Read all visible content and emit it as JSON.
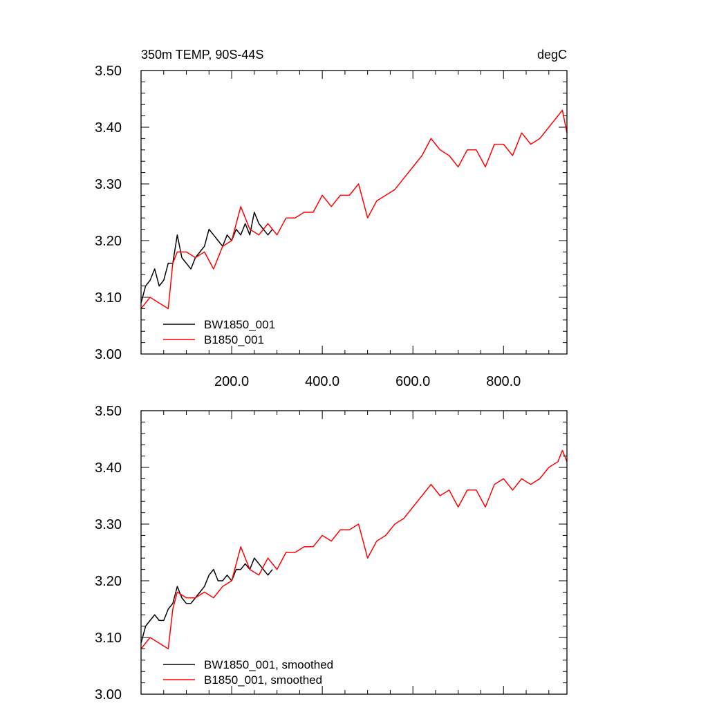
{
  "colors": {
    "series_black": "#000000",
    "series_red": "#ff0000",
    "axes": "#000000",
    "background": "#ffffff"
  },
  "chart_data": [
    {
      "type": "line",
      "title": "350m TEMP, 90S-44S",
      "units": "degC",
      "xlim": [
        0,
        940
      ],
      "ylim": [
        3.0,
        3.5
      ],
      "yticks": [
        3.0,
        3.1,
        3.2,
        3.3,
        3.4,
        3.5
      ],
      "ytick_labels": [
        "3.00",
        "3.10",
        "3.20",
        "3.30",
        "3.40",
        "3.50"
      ],
      "xticks": [
        200,
        400,
        600,
        800
      ],
      "xtick_labels": [
        "200.0",
        "400.0",
        "600.0",
        "800.0"
      ],
      "legend_position": "bottom-left",
      "series": [
        {
          "name": "BW1850_001",
          "color": "#000000",
          "x": [
            0,
            10,
            20,
            30,
            40,
            50,
            60,
            70,
            80,
            90,
            100,
            110,
            120,
            130,
            140,
            150,
            160,
            170,
            180,
            190,
            200,
            210,
            220,
            230,
            240,
            250,
            260,
            270,
            280,
            290
          ],
          "y": [
            3.09,
            3.12,
            3.13,
            3.15,
            3.12,
            3.13,
            3.16,
            3.16,
            3.21,
            3.17,
            3.16,
            3.15,
            3.17,
            3.18,
            3.19,
            3.22,
            3.21,
            3.2,
            3.19,
            3.21,
            3.2,
            3.22,
            3.21,
            3.23,
            3.21,
            3.25,
            3.23,
            3.22,
            3.21,
            3.22
          ]
        },
        {
          "name": "B1850_001",
          "color": "#ff0000",
          "x": [
            0,
            20,
            40,
            60,
            70,
            80,
            100,
            120,
            140,
            160,
            180,
            200,
            220,
            240,
            260,
            280,
            300,
            320,
            340,
            360,
            380,
            400,
            420,
            440,
            460,
            480,
            500,
            520,
            540,
            560,
            580,
            600,
            620,
            640,
            660,
            680,
            700,
            720,
            740,
            760,
            780,
            800,
            820,
            840,
            860,
            880,
            900,
            920,
            930,
            940
          ],
          "y": [
            3.08,
            3.1,
            3.09,
            3.08,
            3.16,
            3.18,
            3.18,
            3.17,
            3.18,
            3.15,
            3.19,
            3.2,
            3.26,
            3.22,
            3.21,
            3.23,
            3.21,
            3.24,
            3.24,
            3.25,
            3.25,
            3.28,
            3.26,
            3.28,
            3.28,
            3.3,
            3.24,
            3.27,
            3.28,
            3.29,
            3.31,
            3.33,
            3.35,
            3.38,
            3.36,
            3.35,
            3.33,
            3.36,
            3.36,
            3.33,
            3.37,
            3.37,
            3.35,
            3.39,
            3.37,
            3.38,
            3.4,
            3.42,
            3.43,
            3.39
          ]
        }
      ]
    },
    {
      "type": "line",
      "title": "",
      "xlim": [
        0,
        940
      ],
      "ylim": [
        3.0,
        3.5
      ],
      "yticks": [
        3.0,
        3.1,
        3.2,
        3.3,
        3.4,
        3.5
      ],
      "ytick_labels": [
        "3.00",
        "3.10",
        "3.20",
        "3.30",
        "3.40",
        "3.50"
      ],
      "xticks": [
        200,
        400,
        600,
        800
      ],
      "legend_position": "bottom-left",
      "series": [
        {
          "name": "BW1850_001, smoothed",
          "color": "#000000",
          "x": [
            0,
            10,
            20,
            30,
            40,
            50,
            60,
            70,
            80,
            90,
            100,
            110,
            120,
            130,
            140,
            150,
            160,
            170,
            180,
            190,
            200,
            210,
            220,
            230,
            240,
            250,
            260,
            270,
            280,
            290
          ],
          "y": [
            3.09,
            3.12,
            3.13,
            3.14,
            3.13,
            3.13,
            3.15,
            3.16,
            3.19,
            3.17,
            3.16,
            3.16,
            3.17,
            3.18,
            3.19,
            3.21,
            3.22,
            3.2,
            3.2,
            3.21,
            3.2,
            3.22,
            3.22,
            3.23,
            3.22,
            3.24,
            3.23,
            3.22,
            3.21,
            3.22
          ]
        },
        {
          "name": "B1850_001, smoothed",
          "color": "#ff0000",
          "x": [
            0,
            20,
            40,
            60,
            70,
            80,
            100,
            120,
            140,
            160,
            180,
            200,
            220,
            240,
            260,
            280,
            300,
            320,
            340,
            360,
            380,
            400,
            420,
            440,
            460,
            480,
            500,
            520,
            540,
            560,
            580,
            600,
            620,
            640,
            660,
            680,
            700,
            720,
            740,
            760,
            780,
            800,
            820,
            840,
            860,
            880,
            900,
            920,
            930,
            940
          ],
          "y": [
            3.08,
            3.1,
            3.09,
            3.08,
            3.15,
            3.18,
            3.17,
            3.17,
            3.18,
            3.17,
            3.19,
            3.2,
            3.26,
            3.22,
            3.21,
            3.24,
            3.22,
            3.25,
            3.25,
            3.26,
            3.26,
            3.28,
            3.27,
            3.29,
            3.29,
            3.3,
            3.24,
            3.27,
            3.28,
            3.3,
            3.31,
            3.33,
            3.35,
            3.37,
            3.35,
            3.36,
            3.33,
            3.36,
            3.36,
            3.33,
            3.37,
            3.38,
            3.36,
            3.38,
            3.37,
            3.38,
            3.4,
            3.41,
            3.43,
            3.41
          ]
        }
      ]
    }
  ]
}
